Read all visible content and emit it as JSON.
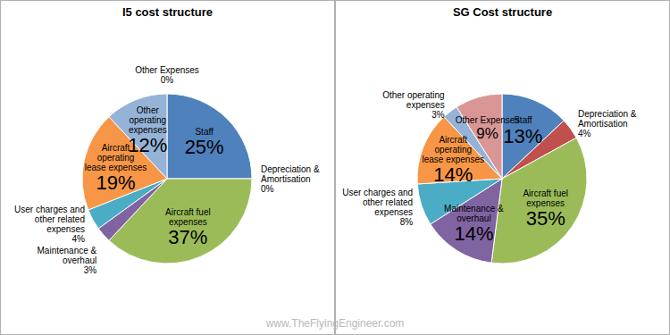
{
  "chart_data": [
    {
      "type": "pie",
      "title": "I5 cost structure",
      "categories": [
        "Staff",
        "Depreciation & Amortisation",
        "Aircraft fuel expenses",
        "Maintenance & overhaul",
        "User charges and other related expenses",
        "Aircraft operating lease expenses",
        "Other operating expenses",
        "Other Expenses"
      ],
      "values": [
        25,
        0,
        37,
        3,
        4,
        19,
        12,
        0
      ],
      "value_labels": [
        "25%",
        "0%",
        "37%",
        "3%",
        "4%",
        "19%",
        "12%",
        "0%"
      ],
      "colors": [
        "#4f81bd",
        "#c0504d",
        "#9bbb59",
        "#8064a2",
        "#4bacc6",
        "#f79646",
        "#95b3d7",
        "#d99694"
      ],
      "data_labels": true
    },
    {
      "type": "pie",
      "title": "SG Cost structure",
      "categories": [
        "Staff",
        "Depreciation & Amortisation",
        "Aircraft fuel expenses",
        "Maintenance & overhaul",
        "User charges and other related expenses",
        "Aircraft operating lease expenses",
        "Other operating expenses",
        "Other Expenses"
      ],
      "values": [
        13,
        4,
        35,
        14,
        8,
        14,
        3,
        9
      ],
      "value_labels": [
        "13%",
        "4%",
        "35%",
        "14%",
        "8%",
        "14%",
        "3%",
        "9%"
      ],
      "colors": [
        "#4f81bd",
        "#c0504d",
        "#9bbb59",
        "#8064a2",
        "#4bacc6",
        "#f79646",
        "#95b3d7",
        "#d99694"
      ],
      "data_labels": true
    }
  ],
  "annotations": [
    "www.TheFlyingEngineer.com"
  ]
}
